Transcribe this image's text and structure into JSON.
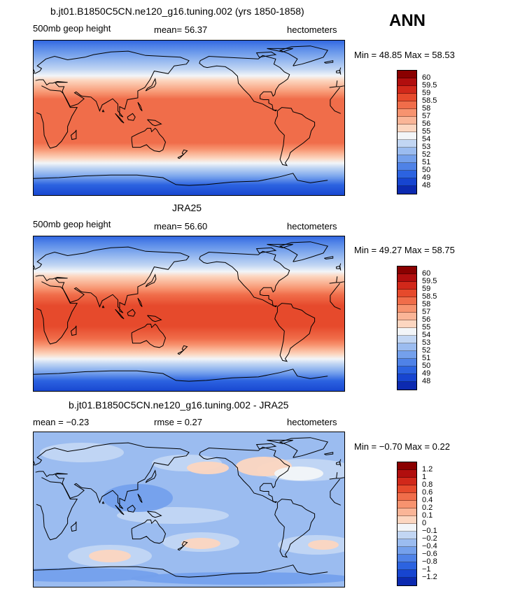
{
  "season": "ANN",
  "panels": [
    {
      "title": "b.jt01.B1850C5CN.ne120_g16.tuning.002 (yrs 1850-1858)",
      "left": "500mb geop height",
      "center": "mean=  56.37",
      "right": "hectometers",
      "minmax": "Min =  48.85 Max =  58.53",
      "field": "model"
    },
    {
      "title": "JRA25",
      "left": "500mb geop height",
      "center": "mean=  56.60",
      "right": "hectometers",
      "minmax": "Min =  49.27 Max =  58.75",
      "field": "obs"
    },
    {
      "title": "b.jt01.B1850C5CN.ne120_g16.tuning.002 - JRA25",
      "left": "mean =  −0.23",
      "center": "rmse =    0.27",
      "right": "hectometers",
      "minmax": "Min =  −0.70 Max =    0.22",
      "field": "diff"
    }
  ],
  "legends": {
    "height": {
      "labels": [
        "60",
        "59.5",
        "59",
        "58.5",
        "58",
        "57",
        "56",
        "55",
        "54",
        "53",
        "52",
        "51",
        "50",
        "49",
        "48"
      ],
      "colors": [
        "#8a0000",
        "#b10e0e",
        "#d1281a",
        "#e64a2c",
        "#f06d4a",
        "#f7936f",
        "#fab597",
        "#fcd6c0",
        "#f2f5f8",
        "#c2d6f3",
        "#9bbcf0",
        "#74a0ec",
        "#4f82e7",
        "#2c63e0",
        "#1745d0",
        "#0c2ab0"
      ]
    },
    "diff": {
      "labels": [
        "1.2",
        "1",
        "0.8",
        "0.6",
        "0.4",
        "0.2",
        "0.1",
        "0",
        "−0.1",
        "−0.2",
        "−0.4",
        "−0.6",
        "−0.8",
        "−1",
        "−1.2"
      ],
      "colors": [
        "#8a0000",
        "#b10e0e",
        "#d1281a",
        "#e64a2c",
        "#f06d4a",
        "#f7936f",
        "#fab597",
        "#fcd6c0",
        "#f2f5f8",
        "#c2d6f3",
        "#9bbcf0",
        "#74a0ec",
        "#4f82e7",
        "#2c63e0",
        "#1745d0",
        "#0c2ab0"
      ]
    }
  }
}
